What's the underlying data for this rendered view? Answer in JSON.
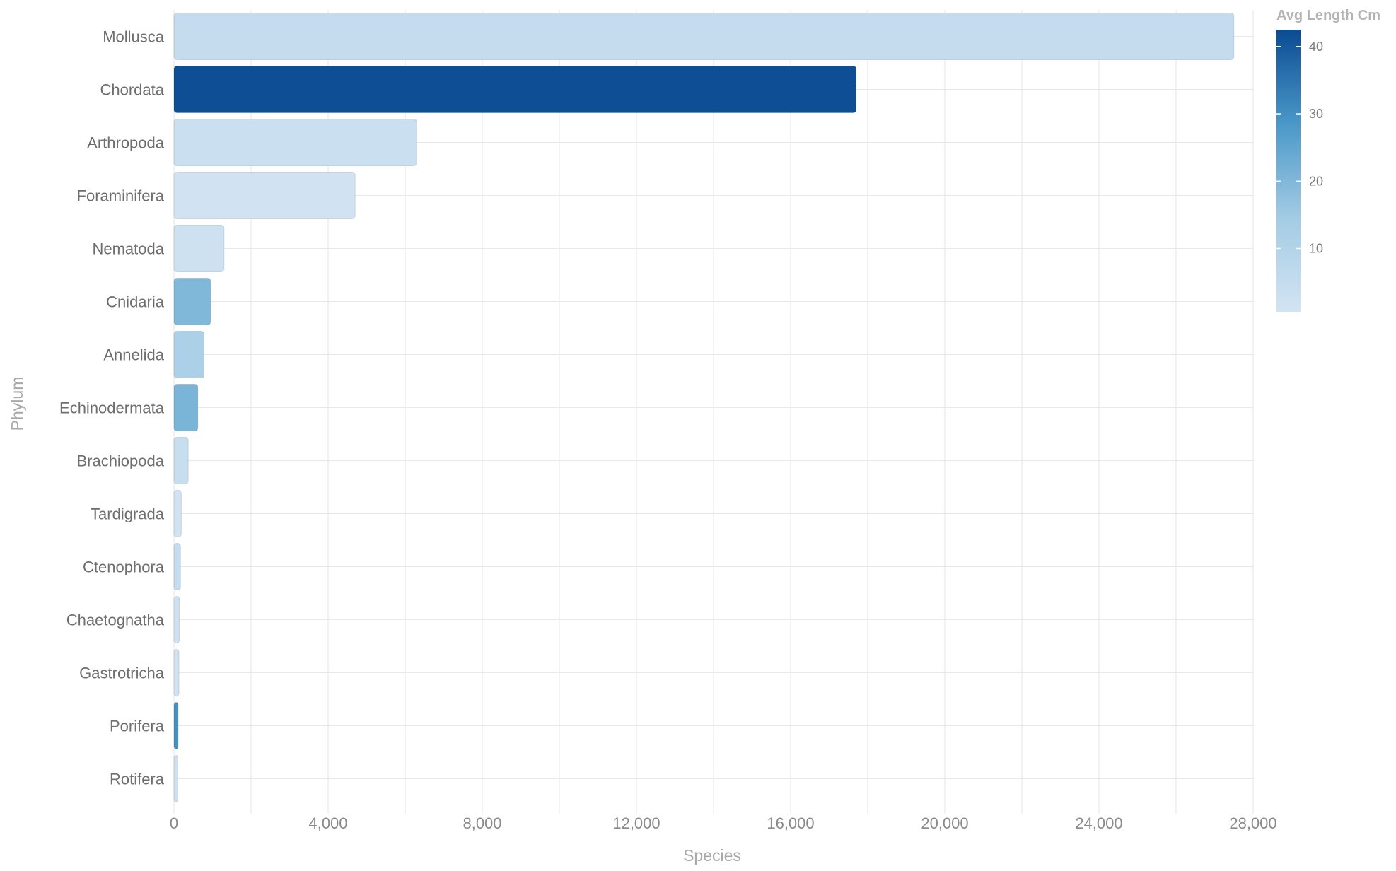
{
  "chart_data": {
    "type": "bar",
    "orientation": "horizontal",
    "categories": [
      "Mollusca",
      "Chordata",
      "Arthropoda",
      "Foraminifera",
      "Nematoda",
      "Cnidaria",
      "Annelida",
      "Echinodermata",
      "Brachiopoda",
      "Tardigrada",
      "Ctenophora",
      "Chaetognatha",
      "Gastrotricha",
      "Porifera",
      "Rotifera"
    ],
    "values": [
      27500,
      17700,
      6300,
      4700,
      1300,
      950,
      780,
      620,
      370,
      190,
      170,
      140,
      130,
      110,
      100
    ],
    "color_values": [
      5,
      42,
      3,
      1,
      2,
      20,
      12,
      21,
      4,
      1,
      5,
      2,
      1,
      30,
      2
    ],
    "xlabel": "Species",
    "ylabel": "Phylum",
    "xlim": [
      0,
      28000
    ],
    "xticks": [
      0,
      4000,
      8000,
      12000,
      16000,
      20000,
      24000,
      28000
    ],
    "x_tick_labels": [
      "0",
      "4,000",
      "8,000",
      "12,000",
      "16,000",
      "20,000",
      "24,000",
      "28,000"
    ],
    "grid": true,
    "legend": {
      "title": "Avg Length Cm",
      "position": "top-right",
      "range": [
        0.5,
        42.5
      ],
      "ticks": [
        10,
        20,
        30,
        40
      ],
      "tick_labels": [
        "10",
        "20",
        "30",
        "40"
      ],
      "colors": [
        "#d3e4f3",
        "#a3cce4",
        "#4a98c9",
        "#0b4b92"
      ]
    }
  }
}
